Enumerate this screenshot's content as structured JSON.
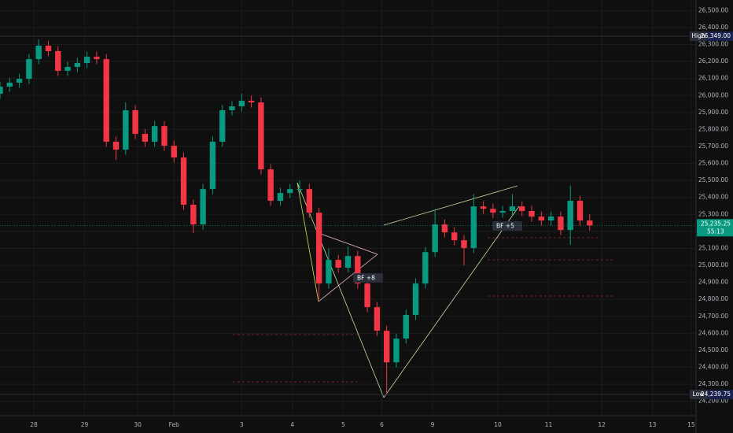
{
  "chart_data": {
    "type": "candlestick",
    "x": [
      0,
      4,
      8,
      12,
      16,
      20,
      24,
      28,
      32,
      36,
      40,
      44,
      48,
      52,
      56,
      60,
      64,
      68,
      72,
      76,
      80,
      84,
      88,
      92,
      96,
      100,
      104,
      108,
      112,
      116,
      120,
      124,
      128,
      132,
      136,
      140,
      144,
      148,
      152,
      156,
      160,
      164,
      168,
      172,
      176,
      180,
      184,
      188,
      192,
      196,
      200,
      204,
      208,
      212,
      216,
      220,
      224,
      228,
      232,
      236,
      240,
      244
    ],
    "open": [
      26010,
      26052,
      26075,
      26098,
      26214,
      26293,
      26261,
      26145,
      26168,
      26191,
      26228,
      26214,
      25728,
      25681,
      25913,
      25774,
      25728,
      25820,
      25704,
      25635,
      25357,
      25241,
      25449,
      25728,
      25913,
      25936,
      25969,
      25959,
      25565,
      25380,
      25426,
      25449,
      25449,
      25310,
      24893,
      25032,
      24986,
      25055,
      24893,
      24754,
      24615,
      24429,
      24569,
      24708,
      24893,
      25078,
      25241,
      25194,
      25148,
      25102,
      25347,
      25333,
      25310,
      25320,
      25347,
      25320,
      25287,
      25264,
      25287,
      25208,
      25380,
      25264
    ],
    "high": [
      26082,
      26105,
      26128,
      26244,
      26330,
      26323,
      26291,
      26198,
      26221,
      26258,
      26258,
      26244,
      25758,
      25960,
      25943,
      25804,
      25850,
      25850,
      25734,
      25665,
      25387,
      25479,
      25758,
      25943,
      25966,
      26010,
      25999,
      25989,
      25595,
      25456,
      25479,
      25500,
      25479,
      25340,
      25100,
      25062,
      25110,
      25085,
      24923,
      24784,
      24645,
      24599,
      24738,
      24923,
      25108,
      25330,
      25271,
      25224,
      25178,
      25420,
      25377,
      25363,
      25350,
      25420,
      25377,
      25350,
      25317,
      25317,
      25317,
      25470,
      25410,
      25300
    ],
    "low": [
      25980,
      26022,
      26045,
      26068,
      26184,
      26231,
      26115,
      26115,
      26138,
      26161,
      26184,
      25698,
      25620,
      25651,
      25744,
      25698,
      25698,
      25674,
      25605,
      25327,
      25190,
      25211,
      25419,
      25698,
      25883,
      25906,
      25929,
      25535,
      25350,
      25350,
      25396,
      25419,
      25280,
      24800,
      24863,
      24956,
      24956,
      24863,
      24724,
      24585,
      24240,
      24399,
      24539,
      24678,
      24863,
      25048,
      25164,
      25118,
      25000,
      25072,
      25303,
      25280,
      25280,
      25290,
      25290,
      25257,
      25234,
      25234,
      25178,
      25120,
      25234,
      25205
    ],
    "close": [
      26052,
      26075,
      26098,
      26214,
      26293,
      26261,
      26145,
      26168,
      26191,
      26228,
      26214,
      25728,
      25681,
      25913,
      25774,
      25728,
      25820,
      25704,
      25635,
      25357,
      25241,
      25449,
      25728,
      25913,
      25936,
      25969,
      25959,
      25565,
      25380,
      25426,
      25449,
      25449,
      25310,
      24893,
      25032,
      24986,
      25055,
      24893,
      24754,
      24615,
      24429,
      24569,
      24708,
      24893,
      25078,
      25241,
      25194,
      25148,
      25102,
      25347,
      25333,
      25310,
      25320,
      25347,
      25320,
      25287,
      25264,
      25287,
      25208,
      25380,
      25264,
      25235.25
    ],
    "up_color": "#089981",
    "down_color": "#f23645",
    "xlim": [
      0,
      288
    ],
    "xticks": [
      {
        "value": 14,
        "label": "28"
      },
      {
        "value": 35,
        "label": "29"
      },
      {
        "value": 57,
        "label": "30"
      },
      {
        "value": 72,
        "label": "Feb"
      },
      {
        "value": 100,
        "label": "3"
      },
      {
        "value": 121,
        "label": "4"
      },
      {
        "value": 142,
        "label": "5"
      },
      {
        "value": 158,
        "label": "6"
      },
      {
        "value": 179,
        "label": "9"
      },
      {
        "value": 206,
        "label": "10"
      },
      {
        "value": 227,
        "label": "11"
      },
      {
        "value": 249,
        "label": "12"
      },
      {
        "value": 270,
        "label": "13"
      },
      {
        "value": 286,
        "label": "15"
      }
    ],
    "ylim": [
      24115,
      26562
    ],
    "yticks": [
      {
        "value": 24200,
        "label": "24,200.00"
      },
      {
        "value": 24300,
        "label": "24,300.00"
      },
      {
        "value": 24400,
        "label": "24,400.00"
      },
      {
        "value": 24500,
        "label": "24,500.00"
      },
      {
        "value": 24600,
        "label": "24,600.00"
      },
      {
        "value": 24700,
        "label": "24,700.00"
      },
      {
        "value": 24800,
        "label": "24,800.00"
      },
      {
        "value": 24900,
        "label": "24,900.00"
      },
      {
        "value": 25000,
        "label": "25,000.00"
      },
      {
        "value": 25100,
        "label": "25,100.00"
      },
      {
        "value": 25200,
        "label": "25,200.00"
      },
      {
        "value": 25300,
        "label": "25,300.00"
      },
      {
        "value": 25400,
        "label": "25,400.00"
      },
      {
        "value": 25500,
        "label": "25,500.00"
      },
      {
        "value": 25600,
        "label": "25,600.00"
      },
      {
        "value": 25700,
        "label": "25,700.00"
      },
      {
        "value": 25800,
        "label": "25,800.00"
      },
      {
        "value": 25900,
        "label": "25,900.00"
      },
      {
        "value": 26000,
        "label": "26,000.00"
      },
      {
        "value": 26100,
        "label": "26,100.00"
      },
      {
        "value": 26200,
        "label": "26,200.00"
      },
      {
        "value": 26300,
        "label": "26,300.00"
      },
      {
        "value": 26400,
        "label": "26,400.00"
      },
      {
        "value": 26500,
        "label": "26,500.00"
      }
    ],
    "grid": true,
    "high_marker": {
      "label": "High",
      "value": 26349,
      "value_label": "26,349.00"
    },
    "low_marker": {
      "label": "Low",
      "value": 24239.75,
      "value_label": "24,239.75"
    },
    "last_price": {
      "value": 25235.25,
      "value_label": "25,235.25",
      "countdown": "55:13"
    },
    "annotations": [
      "BF +8",
      "BF +5"
    ]
  }
}
